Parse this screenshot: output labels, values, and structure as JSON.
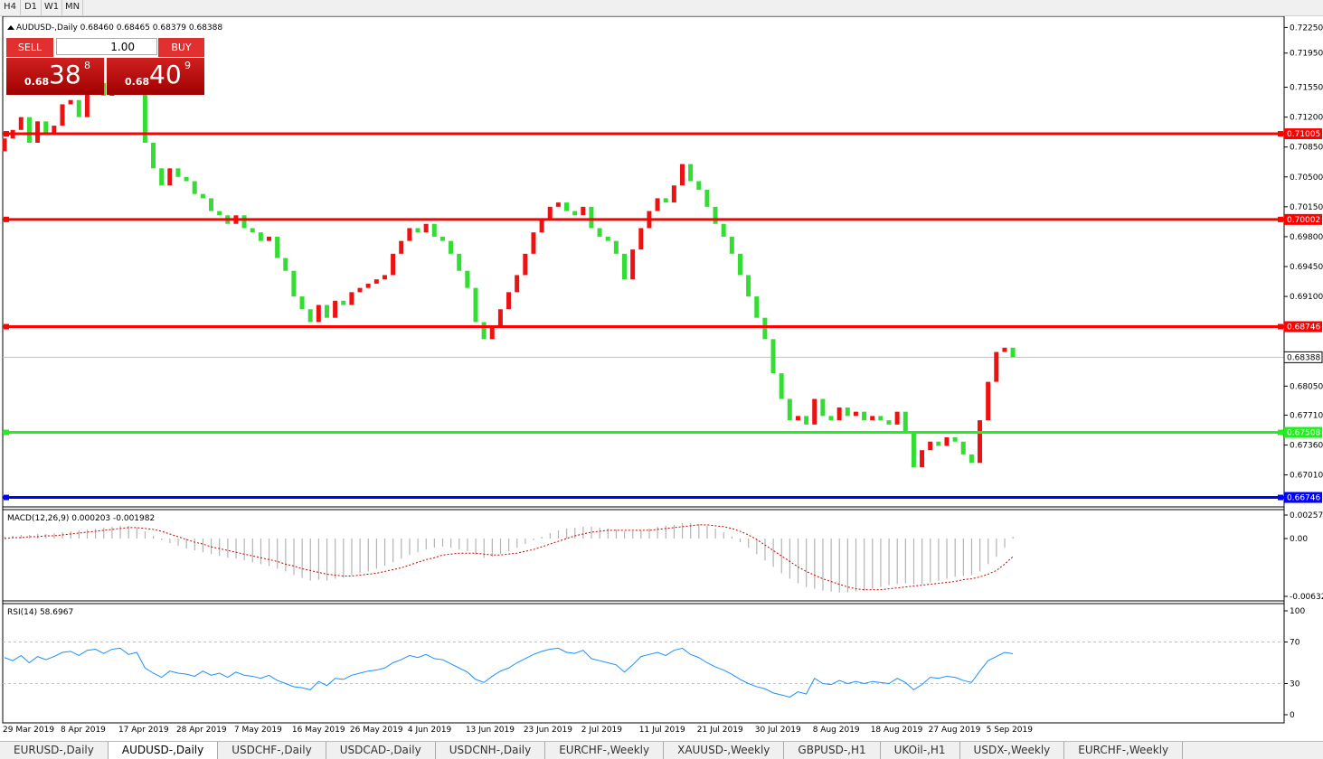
{
  "toolbar": {
    "timeframes": [
      "H4",
      "D1",
      "W1",
      "MN"
    ]
  },
  "trade_panel": {
    "sell_label": "SELL",
    "buy_label": "BUY",
    "volume": "1.00",
    "sell_price": {
      "prefix": "0.68",
      "big": "38",
      "small": "8"
    },
    "buy_price": {
      "prefix": "0.68",
      "big": "40",
      "small": "9"
    }
  },
  "chart_data": [
    {
      "type": "candlestick",
      "title": "AUDUSD-,Daily  0.68460 0.68465 0.68379 0.68388",
      "up_color": "#ee1111",
      "down_color": "#33dd33",
      "categories": [
        "29 Mar 2019",
        null,
        null,
        null,
        null,
        null,
        null,
        "8 Apr 2019",
        null,
        null,
        null,
        null,
        null,
        null,
        "17 Apr 2019",
        null,
        null,
        null,
        null,
        null,
        null,
        "28 Apr 2019",
        null,
        null,
        null,
        null,
        null,
        null,
        "7 May 2019",
        null,
        null,
        null,
        null,
        null,
        null,
        "16 May 2019",
        null,
        null,
        null,
        null,
        null,
        null,
        "26 May 2019",
        null,
        null,
        null,
        null,
        null,
        null,
        "4 Jun 2019",
        null,
        null,
        null,
        null,
        null,
        null,
        "13 Jun 2019",
        null,
        null,
        null,
        null,
        null,
        null,
        "23 Jun 2019",
        null,
        null,
        null,
        null,
        null,
        null,
        "2 Jul 2019",
        null,
        null,
        null,
        null,
        null,
        null,
        "11 Jul 2019",
        null,
        null,
        null,
        null,
        null,
        null,
        "21 Jul 2019",
        null,
        null,
        null,
        null,
        null,
        null,
        "30 Jul 2019",
        null,
        null,
        null,
        null,
        null,
        null,
        "8 Aug 2019",
        null,
        null,
        null,
        null,
        null,
        null,
        "18 Aug 2019",
        null,
        null,
        null,
        null,
        null,
        null,
        "27 Aug 2019",
        null,
        null,
        null,
        null,
        null,
        null,
        "5 Sep 2019",
        null,
        null,
        null
      ],
      "open": [
        0.708,
        0.7095,
        0.7105,
        0.712,
        0.709,
        0.7115,
        0.71,
        0.711,
        0.7135,
        0.714,
        0.712,
        0.715,
        0.716,
        0.7145,
        0.7165,
        0.7175,
        0.715,
        0.716,
        0.709,
        0.706,
        0.704,
        0.706,
        0.705,
        0.7045,
        0.703,
        0.7025,
        0.701,
        0.7005,
        0.6995,
        0.7005,
        0.699,
        0.6985,
        0.6975,
        0.698,
        0.6955,
        0.694,
        0.691,
        0.6895,
        0.688,
        0.69,
        0.6885,
        0.6905,
        0.69,
        0.6915,
        0.692,
        0.6925,
        0.693,
        0.6935,
        0.696,
        0.6975,
        0.699,
        0.6985,
        0.6995,
        0.698,
        0.6975,
        0.696,
        0.694,
        0.692,
        0.688,
        0.686,
        0.6875,
        0.6895,
        0.6915,
        0.6935,
        0.696,
        0.6985,
        0.7,
        0.7015,
        0.702,
        0.701,
        0.7005,
        0.7015,
        0.699,
        0.698,
        0.6975,
        0.696,
        0.693,
        0.6965,
        0.699,
        0.701,
        0.7025,
        0.702,
        0.704,
        0.7065,
        0.7045,
        0.7035,
        0.7015,
        0.6995,
        0.698,
        0.696,
        0.6935,
        0.691,
        0.6885,
        0.686,
        0.682,
        0.679,
        0.6765,
        0.677,
        0.676,
        0.679,
        0.677,
        0.6765,
        0.678,
        0.677,
        0.6775,
        0.6765,
        0.677,
        0.6765,
        0.676,
        0.6775,
        0.675,
        0.671,
        0.673,
        0.674,
        0.6735,
        0.6745,
        0.674,
        0.6725,
        0.6715,
        0.6765,
        0.681,
        0.6845,
        0.685
      ],
      "close": [
        0.7095,
        0.7105,
        0.712,
        0.709,
        0.7115,
        0.71,
        0.711,
        0.7135,
        0.714,
        0.712,
        0.715,
        0.716,
        0.7145,
        0.7165,
        0.7175,
        0.715,
        0.716,
        0.709,
        0.706,
        0.704,
        0.706,
        0.705,
        0.7045,
        0.703,
        0.7025,
        0.701,
        0.7005,
        0.6995,
        0.7005,
        0.699,
        0.6985,
        0.6975,
        0.698,
        0.6955,
        0.694,
        0.691,
        0.6895,
        0.688,
        0.69,
        0.6885,
        0.6905,
        0.69,
        0.6915,
        0.692,
        0.6925,
        0.693,
        0.6935,
        0.696,
        0.6975,
        0.699,
        0.6985,
        0.6995,
        0.698,
        0.6975,
        0.696,
        0.694,
        0.692,
        0.688,
        0.686,
        0.6875,
        0.6895,
        0.6915,
        0.6935,
        0.696,
        0.6985,
        0.7,
        0.7015,
        0.702,
        0.701,
        0.7005,
        0.7015,
        0.699,
        0.698,
        0.6975,
        0.696,
        0.693,
        0.6965,
        0.699,
        0.701,
        0.7025,
        0.702,
        0.704,
        0.7065,
        0.7045,
        0.7035,
        0.7015,
        0.6995,
        0.698,
        0.696,
        0.6935,
        0.691,
        0.6885,
        0.686,
        0.682,
        0.679,
        0.6765,
        0.677,
        0.676,
        0.679,
        0.677,
        0.6765,
        0.678,
        0.677,
        0.6775,
        0.6765,
        0.677,
        0.6765,
        0.676,
        0.6775,
        0.675,
        0.671,
        0.673,
        0.674,
        0.6735,
        0.6745,
        0.674,
        0.6725,
        0.6715,
        0.6765,
        0.681,
        0.6845,
        0.685,
        0.6839
      ],
      "ylim": [
        0.6672,
        0.7236
      ],
      "yticks": [
        {
          "value": 0.7225,
          "label": "0.72250"
        },
        {
          "value": 0.7195,
          "label": "0.71950"
        },
        {
          "value": 0.7155,
          "label": "0.71550"
        },
        {
          "value": 0.712,
          "label": "0.71200"
        },
        {
          "value": 0.7085,
          "label": "0.70850"
        },
        {
          "value": 0.705,
          "label": "0.70500"
        },
        {
          "value": 0.7015,
          "label": "0.70150"
        },
        {
          "value": 0.698,
          "label": "0.69800"
        },
        {
          "value": 0.6945,
          "label": "0.69450"
        },
        {
          "value": 0.691,
          "label": "0.69100"
        },
        {
          "value": 0.6805,
          "label": "0.68050"
        },
        {
          "value": 0.6771,
          "label": "0.67710"
        },
        {
          "value": 0.6736,
          "label": "0.67360"
        },
        {
          "value": 0.6701,
          "label": "0.67010"
        }
      ],
      "levels": [
        {
          "value": 0.71005,
          "color": "#ff0000"
        },
        {
          "value": 0.70002,
          "color": "#ff0000"
        },
        {
          "value": 0.68746,
          "color": "#ff0000"
        },
        {
          "value": 0.67508,
          "color": "#22ee22"
        },
        {
          "value": 0.66746,
          "color": "#0000ff"
        }
      ],
      "current_price": 0.68388
    },
    {
      "type": "macd",
      "title": "MACD(12,26,9) 0.000203 -0.001982",
      "color": "#b4b4b4",
      "signal_color": "#cc0000",
      "values": [
        0.0002,
        0.0003,
        0.0004,
        0.0004,
        0.0005,
        0.0005,
        0.0006,
        0.0007,
        0.0008,
        0.0009,
        0.001,
        0.0011,
        0.0012,
        0.0013,
        0.0014,
        0.0014,
        0.0012,
        0.0008,
        0.0003,
        -0.0002,
        -0.0005,
        -0.0008,
        -0.0011,
        -0.0013,
        -0.0015,
        -0.0017,
        -0.0019,
        -0.0021,
        -0.0022,
        -0.0024,
        -0.0026,
        -0.0028,
        -0.003,
        -0.0033,
        -0.0036,
        -0.004,
        -0.0043,
        -0.0046,
        -0.0045,
        -0.0046,
        -0.0044,
        -0.0043,
        -0.004,
        -0.0038,
        -0.0036,
        -0.0033,
        -0.003,
        -0.0026,
        -0.0022,
        -0.0018,
        -0.0015,
        -0.0012,
        -0.001,
        -0.0009,
        -0.001,
        -0.0012,
        -0.0014,
        -0.0018,
        -0.0021,
        -0.002,
        -0.0017,
        -0.0014,
        -0.001,
        -0.0006,
        -0.0002,
        0.0002,
        0.0006,
        0.0009,
        0.0011,
        0.0012,
        0.0013,
        0.0013,
        0.0012,
        0.0011,
        0.001,
        0.0008,
        0.0008,
        0.0009,
        0.0011,
        0.0013,
        0.0014,
        0.0015,
        0.0017,
        0.0017,
        0.0016,
        0.0014,
        0.0011,
        0.0007,
        0.0002,
        -0.0004,
        -0.001,
        -0.0017,
        -0.0024,
        -0.0031,
        -0.0038,
        -0.0044,
        -0.0049,
        -0.0053,
        -0.0055,
        -0.0057,
        -0.0058,
        -0.0059,
        -0.0059,
        -0.0058,
        -0.0057,
        -0.0055,
        -0.0053,
        -0.0051,
        -0.005,
        -0.0049,
        -0.005,
        -0.005,
        -0.0048,
        -0.0046,
        -0.0044,
        -0.0042,
        -0.0041,
        -0.004,
        -0.0036,
        -0.0028,
        -0.002,
        -0.001,
        0.000203
      ],
      "signal": [
        0,
        0.0001,
        0.0001,
        0.0002,
        0.0002,
        0.0003,
        0.0003,
        0.0004,
        0.0005,
        0.0006,
        0.0007,
        0.0008,
        0.0009,
        0.001,
        0.0011,
        0.0012,
        0.0012,
        0.0011,
        0.001,
        0.0008,
        0.0005,
        0.0002,
        -0.0001,
        -0.0004,
        -0.0006,
        -0.0009,
        -0.0011,
        -0.0013,
        -0.0015,
        -0.0017,
        -0.0019,
        -0.0021,
        -0.0023,
        -0.0025,
        -0.0028,
        -0.003,
        -0.0033,
        -0.0035,
        -0.0037,
        -0.0039,
        -0.004,
        -0.0041,
        -0.0041,
        -0.004,
        -0.0039,
        -0.0038,
        -0.0036,
        -0.0034,
        -0.0032,
        -0.0029,
        -0.0026,
        -0.0023,
        -0.0021,
        -0.0018,
        -0.0017,
        -0.0016,
        -0.0016,
        -0.0016,
        -0.0017,
        -0.0018,
        -0.0018,
        -0.0017,
        -0.0016,
        -0.0014,
        -0.0012,
        -0.0009,
        -0.0006,
        -0.0003,
        0,
        0.0003,
        0.0005,
        0.0007,
        0.0008,
        0.0009,
        0.0009,
        0.0009,
        0.0009,
        0.0009,
        0.0009,
        0.001,
        0.0011,
        0.0012,
        0.0013,
        0.0014,
        0.0015,
        0.0015,
        0.0014,
        0.0013,
        0.0011,
        0.0008,
        0.0004,
        -0.0001,
        -0.0007,
        -0.0013,
        -0.0019,
        -0.0025,
        -0.0031,
        -0.0036,
        -0.004,
        -0.0044,
        -0.0047,
        -0.005,
        -0.0053,
        -0.0055,
        -0.0056,
        -0.0056,
        -0.0056,
        -0.0055,
        -0.0054,
        -0.0053,
        -0.0052,
        -0.0051,
        -0.005,
        -0.0049,
        -0.0048,
        -0.0047,
        -0.0045,
        -0.0044,
        -0.0042,
        -0.0039,
        -0.0035,
        -0.0028,
        -0.001982
      ],
      "ylim": [
        -0.006326,
        0.002574
      ],
      "yticks": [
        0.002574,
        {
          "value": 0,
          "label": "0.00"
        },
        -0.006326
      ]
    },
    {
      "type": "rsi",
      "title": "RSI(14) 58.6967",
      "color": "#1e8fff",
      "values": [
        55,
        52,
        57,
        50,
        56,
        53,
        56,
        60,
        61,
        57,
        62,
        63,
        59,
        63,
        64,
        58,
        60,
        45,
        40,
        36,
        42,
        40,
        39,
        37,
        42,
        38,
        40,
        36,
        41,
        38,
        37,
        35,
        38,
        33,
        30,
        27,
        26,
        24,
        32,
        28,
        35,
        34,
        38,
        40,
        42,
        43,
        45,
        50,
        53,
        57,
        55,
        58,
        54,
        53,
        49,
        45,
        41,
        34,
        31,
        37,
        42,
        45,
        50,
        54,
        58,
        61,
        63,
        64,
        60,
        59,
        62,
        54,
        52,
        50,
        48,
        41,
        48,
        56,
        58,
        60,
        57,
        62,
        64,
        58,
        55,
        50,
        46,
        43,
        39,
        34,
        30,
        27,
        25,
        21,
        19,
        17,
        22,
        20,
        35,
        30,
        29,
        33,
        30,
        32,
        30,
        32,
        31,
        30,
        35,
        31,
        24,
        29,
        36,
        35,
        37,
        36,
        33,
        31,
        42,
        52,
        56,
        60,
        58.6967
      ],
      "ylim": [
        0,
        100
      ],
      "yticks": [
        100,
        70,
        30,
        0
      ]
    }
  ],
  "tabs": [
    "EURUSD-,Daily",
    "AUDUSD-,Daily",
    "USDCHF-,Daily",
    "USDCAD-,Daily",
    "USDCNH-,Daily",
    "EURCHF-,Weekly",
    "XAUUSD-,Weekly",
    "GBPUSD-,H1",
    "UKOil-,H1",
    "USDX-,Weekly",
    "EURCHF-,Weekly"
  ]
}
